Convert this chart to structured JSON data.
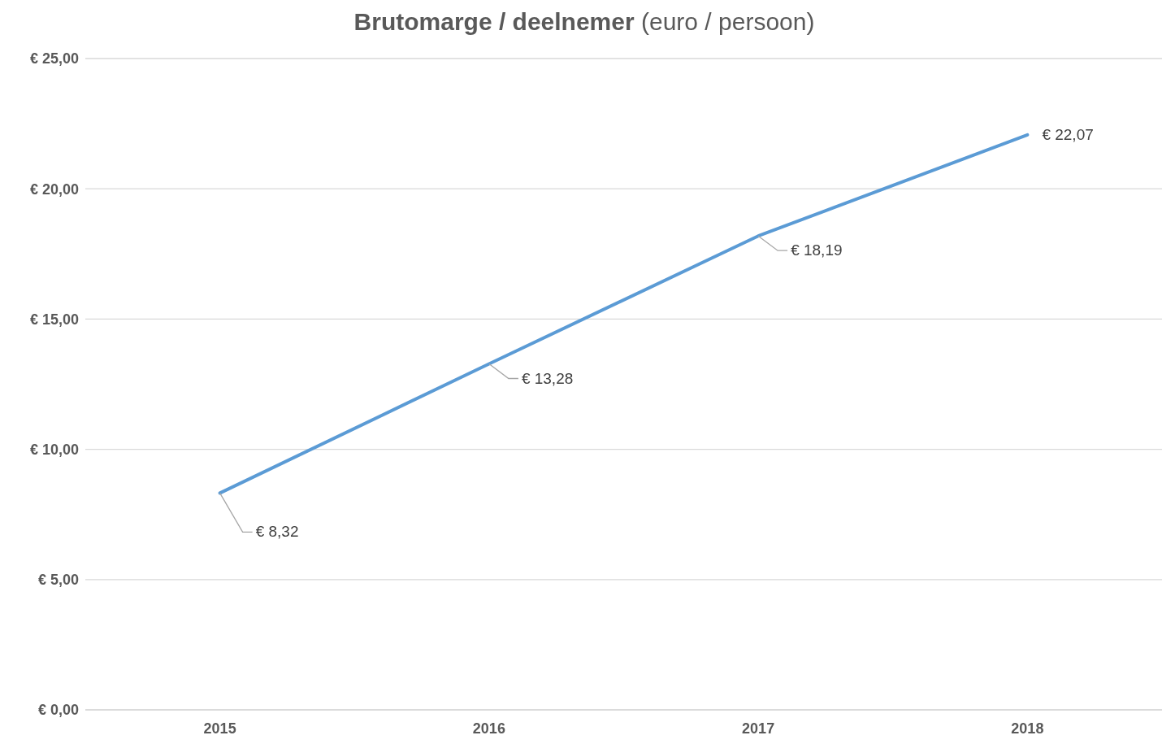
{
  "chart_data": {
    "type": "line",
    "title": "Brutomarge / deelnemer",
    "subtitle": "(euro / persoon)",
    "categories": [
      "2015",
      "2016",
      "2017",
      "2018"
    ],
    "series": [
      {
        "color": "#5b9bd5",
        "values": [
          8.32,
          13.28,
          18.19,
          22.07
        ],
        "value_labels": [
          "€ 8,32",
          "€ 13,28",
          "€ 18,19",
          "€ 22,07"
        ]
      }
    ],
    "ylim": [
      0,
      25
    ],
    "yticks": [
      {
        "value": 0,
        "label": "€ 0,00"
      },
      {
        "value": 5,
        "label": "€ 5,00"
      },
      {
        "value": 10,
        "label": "€ 10,00"
      },
      {
        "value": 15,
        "label": "€ 15,00"
      },
      {
        "value": 20,
        "label": "€ 20,00"
      },
      {
        "value": 25,
        "label": "€ 25,00"
      }
    ],
    "grid": "y",
    "legend": false,
    "marker": "none",
    "line_style": "solid"
  }
}
